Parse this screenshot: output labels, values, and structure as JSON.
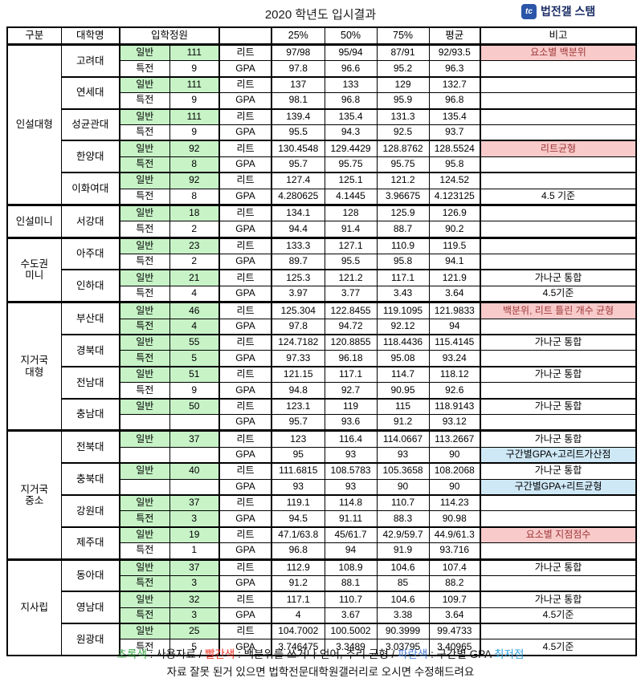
{
  "title": "2020 학년도 입시결과",
  "logo": {
    "icon_text": "tc",
    "icon_bg": "#2b55a8",
    "label": "법전갤 스탬"
  },
  "colors": {
    "used_data_green": "#c7f3c7",
    "remark_pink": "#f9caca",
    "remark_blue": "#cfe8f6",
    "pink_text": "#9c3636"
  },
  "header": {
    "cols": [
      "구분",
      "대학명",
      "입학정원",
      "",
      "25%",
      "50%",
      "75%",
      "평균",
      "비고"
    ]
  },
  "groups": [
    {
      "label": "인설대형",
      "universities": [
        {
          "name": "고려대",
          "rows": [
            {
              "track": "일반",
              "count": "111",
              "track_green": true,
              "type": "리트",
              "p25": "97/98",
              "p50": "95/94",
              "p75": "87/91",
              "avg": "92/93.5",
              "remark": "요소별 백분위",
              "remark_style": "pink"
            },
            {
              "track": "특전",
              "count": "9",
              "track_green": false,
              "type": "GPA",
              "p25": "97.8",
              "p50": "96.6",
              "p75": "95.2",
              "avg": "96.3",
              "remark": "",
              "remark_style": ""
            }
          ]
        },
        {
          "name": "연세대",
          "rows": [
            {
              "track": "일반",
              "count": "111",
              "track_green": true,
              "type": "리트",
              "p25": "137",
              "p50": "133",
              "p75": "129",
              "avg": "132.7",
              "remark": "",
              "remark_style": ""
            },
            {
              "track": "특전",
              "count": "9",
              "track_green": false,
              "type": "GPA",
              "p25": "98.1",
              "p50": "96.8",
              "p75": "95.9",
              "avg": "96.8",
              "remark": "",
              "remark_style": ""
            }
          ]
        },
        {
          "name": "성균관대",
          "rows": [
            {
              "track": "일반",
              "count": "111",
              "track_green": true,
              "type": "리트",
              "p25": "139.4",
              "p50": "135.4",
              "p75": "131.3",
              "avg": "135.4",
              "remark": "",
              "remark_style": ""
            },
            {
              "track": "특전",
              "count": "9",
              "track_green": false,
              "type": "GPA",
              "p25": "95.5",
              "p50": "94.3",
              "p75": "92.5",
              "avg": "93.7",
              "remark": "",
              "remark_style": ""
            }
          ]
        },
        {
          "name": "한양대",
          "rows": [
            {
              "track": "일반",
              "count": "92",
              "track_green": true,
              "type": "리트",
              "p25": "130.4548",
              "p50": "129.4429",
              "p75": "128.8762",
              "avg": "128.5524",
              "remark": "리트균형",
              "remark_style": "pink"
            },
            {
              "track": "특전",
              "count": "8",
              "track_green": true,
              "type": "GPA",
              "p25": "95.7",
              "p50": "95.75",
              "p75": "95.75",
              "avg": "95.8",
              "remark": "",
              "remark_style": ""
            }
          ]
        },
        {
          "name": "이화여대",
          "rows": [
            {
              "track": "일반",
              "count": "92",
              "track_green": true,
              "type": "리트",
              "p25": "127.4",
              "p50": "125.1",
              "p75": "121.2",
              "avg": "124.52",
              "remark": "",
              "remark_style": ""
            },
            {
              "track": "특전",
              "count": "8",
              "track_green": false,
              "type": "GPA",
              "p25": "4.280625",
              "p50": "4.1445",
              "p75": "3.96675",
              "avg": "4.123125",
              "remark": "4.5 기준",
              "remark_style": ""
            }
          ]
        }
      ]
    },
    {
      "label": "인설미니",
      "universities": [
        {
          "name": "서강대",
          "rows": [
            {
              "track": "일반",
              "count": "18",
              "track_green": true,
              "type": "리트",
              "p25": "134.1",
              "p50": "128",
              "p75": "125.9",
              "avg": "126.9",
              "remark": "",
              "remark_style": ""
            },
            {
              "track": "특전",
              "count": "2",
              "track_green": false,
              "type": "GPA",
              "p25": "94.4",
              "p50": "91.4",
              "p75": "88.7",
              "avg": "90.2",
              "remark": "",
              "remark_style": ""
            }
          ]
        }
      ]
    },
    {
      "label": "수도권\n미니",
      "universities": [
        {
          "name": "아주대",
          "rows": [
            {
              "track": "일반",
              "count": "23",
              "track_green": true,
              "type": "리트",
              "p25": "133.3",
              "p50": "127.1",
              "p75": "110.9",
              "avg": "119.5",
              "remark": "",
              "remark_style": ""
            },
            {
              "track": "특전",
              "count": "2",
              "track_green": false,
              "type": "GPA",
              "p25": "89.7",
              "p50": "95.5",
              "p75": "95.8",
              "avg": "94.1",
              "remark": "",
              "remark_style": ""
            }
          ]
        },
        {
          "name": "인하대",
          "rows": [
            {
              "track": "일반",
              "count": "21",
              "track_green": true,
              "type": "리트",
              "p25": "125.3",
              "p50": "121.2",
              "p75": "117.1",
              "avg": "121.9",
              "remark": "가나군 통합",
              "remark_style": ""
            },
            {
              "track": "특전",
              "count": "4",
              "track_green": false,
              "type": "GPA",
              "p25": "3.97",
              "p50": "3.77",
              "p75": "3.43",
              "avg": "3.64",
              "remark": "4.5기준",
              "remark_style": ""
            }
          ]
        }
      ]
    },
    {
      "label": "지거국\n대형",
      "universities": [
        {
          "name": "부산대",
          "rows": [
            {
              "track": "일반",
              "count": "46",
              "track_green": true,
              "type": "리트",
              "p25": "125.304",
              "p50": "122.8455",
              "p75": "119.1095",
              "avg": "121.9833",
              "remark": "백분위, 리트 틀린 개수 균형",
              "remark_style": "pink"
            },
            {
              "track": "특전",
              "count": "4",
              "track_green": true,
              "type": "GPA",
              "p25": "97.8",
              "p50": "94.72",
              "p75": "92.12",
              "avg": "94",
              "remark": "",
              "remark_style": ""
            }
          ]
        },
        {
          "name": "경북대",
          "rows": [
            {
              "track": "일반",
              "count": "55",
              "track_green": true,
              "type": "리트",
              "p25": "124.7182",
              "p50": "120.8855",
              "p75": "118.4436",
              "avg": "115.4145",
              "remark": "가나군 통합",
              "remark_style": ""
            },
            {
              "track": "특전",
              "count": "5",
              "track_green": true,
              "type": "GPA",
              "p25": "97.33",
              "p50": "96.18",
              "p75": "95.08",
              "avg": "93.24",
              "remark": "",
              "remark_style": ""
            }
          ]
        },
        {
          "name": "전남대",
          "rows": [
            {
              "track": "일반",
              "count": "51",
              "track_green": true,
              "type": "리트",
              "p25": "121.15",
              "p50": "117.1",
              "p75": "114.7",
              "avg": "118.12",
              "remark": "가나군 통합",
              "remark_style": ""
            },
            {
              "track": "특전",
              "count": "9",
              "track_green": false,
              "type": "GPA",
              "p25": "94.8",
              "p50": "92.7",
              "p75": "90.95",
              "avg": "92.6",
              "remark": "",
              "remark_style": ""
            }
          ]
        },
        {
          "name": "충남대",
          "rows": [
            {
              "track": "일반",
              "count": "50",
              "track_green": true,
              "type": "리트",
              "p25": "123.1",
              "p50": "119",
              "p75": "115",
              "avg": "118.9143",
              "remark": "가나군 통합",
              "remark_style": ""
            },
            {
              "track": "",
              "count": "",
              "track_green": false,
              "type": "GPA",
              "p25": "95.7",
              "p50": "93.6",
              "p75": "91.2",
              "avg": "93.12",
              "remark": "",
              "remark_style": ""
            }
          ]
        }
      ]
    },
    {
      "label": "지거국\n중소",
      "universities": [
        {
          "name": "전북대",
          "rows": [
            {
              "track": "일반",
              "count": "37",
              "track_green": true,
              "type": "리트",
              "p25": "123",
              "p50": "116.4",
              "p75": "114.0667",
              "avg": "113.2667",
              "remark": "가나군 통합",
              "remark_style": ""
            },
            {
              "track": "",
              "count": "",
              "track_green": false,
              "type": "GPA",
              "p25": "95",
              "p50": "93",
              "p75": "93",
              "avg": "90",
              "remark": "구간별GPA+고리트가산점",
              "remark_style": "blue"
            }
          ]
        },
        {
          "name": "충북대",
          "rows": [
            {
              "track": "일반",
              "count": "40",
              "track_green": true,
              "type": "리트",
              "p25": "111.6815",
              "p50": "108.5783",
              "p75": "105.3658",
              "avg": "108.2068",
              "remark": "가나군 통합",
              "remark_style": ""
            },
            {
              "track": "",
              "count": "",
              "track_green": false,
              "type": "GPA",
              "p25": "93",
              "p50": "93",
              "p75": "90",
              "avg": "90",
              "remark": "구간별GPA+리트균형",
              "remark_style": "blue"
            }
          ]
        },
        {
          "name": "강원대",
          "rows": [
            {
              "track": "일반",
              "count": "37",
              "track_green": true,
              "type": "리트",
              "p25": "119.1",
              "p50": "114.8",
              "p75": "110.7",
              "avg": "114.23",
              "remark": "",
              "remark_style": ""
            },
            {
              "track": "특전",
              "count": "3",
              "track_green": true,
              "type": "GPA",
              "p25": "94.5",
              "p50": "91.11",
              "p75": "88.3",
              "avg": "90.98",
              "remark": "",
              "remark_style": ""
            }
          ]
        },
        {
          "name": "제주대",
          "rows": [
            {
              "track": "일반",
              "count": "19",
              "track_green": true,
              "type": "리트",
              "p25": "47.1/63.8",
              "p50": "45/61.7",
              "p75": "42.9/59.7",
              "avg": "44.9/61.3",
              "remark": "요소별 지점점수",
              "remark_style": "pink"
            },
            {
              "track": "특전",
              "count": "1",
              "track_green": false,
              "type": "GPA",
              "p25": "96.8",
              "p50": "94",
              "p75": "91.9",
              "avg": "93.716",
              "remark": "",
              "remark_style": ""
            }
          ]
        }
      ]
    },
    {
      "label": "지사립",
      "universities": [
        {
          "name": "동아대",
          "rows": [
            {
              "track": "일반",
              "count": "37",
              "track_green": true,
              "type": "리트",
              "p25": "112.9",
              "p50": "108.9",
              "p75": "104.6",
              "avg": "107.4",
              "remark": "가나군 통합",
              "remark_style": ""
            },
            {
              "track": "특전",
              "count": "3",
              "track_green": true,
              "type": "GPA",
              "p25": "91.2",
              "p50": "88.1",
              "p75": "85",
              "avg": "88.2",
              "remark": "",
              "remark_style": ""
            }
          ]
        },
        {
          "name": "영남대",
          "rows": [
            {
              "track": "일반",
              "count": "32",
              "track_green": true,
              "type": "리트",
              "p25": "117.1",
              "p50": "110.7",
              "p75": "104.6",
              "avg": "109.7",
              "remark": "가나군 통합",
              "remark_style": ""
            },
            {
              "track": "특전",
              "count": "3",
              "track_green": true,
              "type": "GPA",
              "p25": "4",
              "p50": "3.67",
              "p75": "3.38",
              "avg": "3.64",
              "remark": "4.5기준",
              "remark_style": ""
            }
          ]
        },
        {
          "name": "원광대",
          "rows": [
            {
              "track": "일반",
              "count": "25",
              "track_green": true,
              "type": "리트",
              "p25": "104.7002",
              "p50": "100.5002",
              "p75": "90.3999",
              "avg": "99.4733",
              "remark": "",
              "remark_style": ""
            },
            {
              "track": "특전",
              "count": "5",
              "track_green": false,
              "type": "GPA",
              "p25": "3.746475",
              "p50": "3.3489",
              "p75": "3.03795",
              "avg": "3.40965",
              "remark": "4.5기준",
              "remark_style": ""
            }
          ]
        }
      ]
    }
  ],
  "footer": {
    "legend": [
      {
        "text": "초록색",
        "hex": "#3da84a"
      },
      {
        "text": " : 사용자료 / ",
        "hex": "#111111"
      },
      {
        "text": "빨간색",
        "hex": "#ee3124"
      },
      {
        "text": " : 백분위를 쓰거나 언어, 추리 균형 / ",
        "hex": "#111111"
      },
      {
        "text": "파란색",
        "hex": "#4a7ed4"
      },
      {
        "text": " : 구간별 GPA ",
        "hex": "#111111"
      },
      {
        "text": "최저점",
        "hex": "#35a3dd"
      }
    ],
    "note": "자료 잘못 된거 있으면 법학전문대학원갤러리로 오시면 수정해드려요"
  }
}
